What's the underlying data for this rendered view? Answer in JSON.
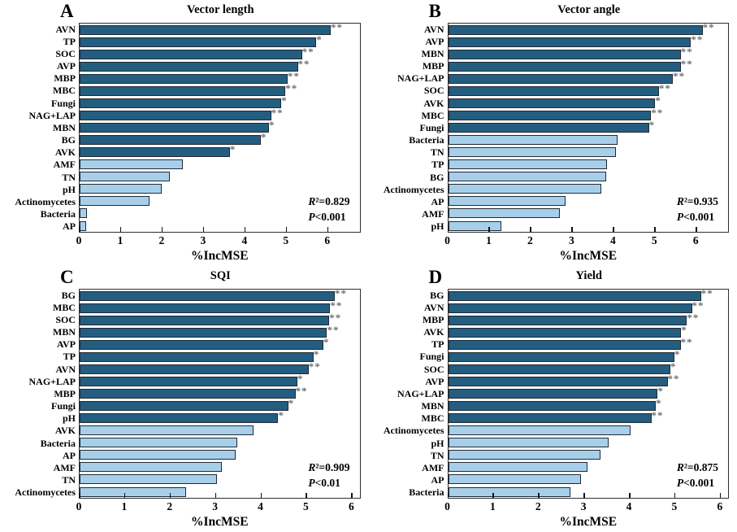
{
  "figure": {
    "xlabel": "%IncMSE",
    "panels_order": [
      "A",
      "B",
      "C",
      "D"
    ]
  },
  "colors": {
    "dark_bar": "#235E80",
    "light_bar": "#A7CFEA",
    "bar_border": "#202A35",
    "plot_border": "#2E2E2E",
    "star": "#6F6F6F",
    "text": "#000000",
    "background": "#FFFFFF"
  },
  "chart_data": [
    {
      "type": "bar",
      "panel": "A",
      "title": "Vector length",
      "orientation": "horizontal",
      "xlabel": "%IncMSE",
      "xlim": [
        0,
        6.8
      ],
      "xticks": [
        0,
        1,
        2,
        3,
        4,
        5,
        6
      ],
      "grid": false,
      "r2_display": "R²=0.829",
      "p_display": "P<0.001",
      "categories": [
        "AVN",
        "TP",
        "SOC",
        "AVP",
        "MBP",
        "MBC",
        "Fungi",
        "NAG+LAP",
        "MBN",
        "BG",
        "AVK",
        "AMF",
        "TN",
        "pH",
        "Actinomycetes",
        "Bacteria",
        "AP"
      ],
      "values": [
        6.1,
        5.75,
        5.4,
        5.3,
        5.05,
        5.0,
        4.9,
        4.65,
        4.6,
        4.4,
        3.65,
        2.5,
        2.2,
        2.0,
        1.7,
        0.18,
        0.16
      ],
      "significance": [
        "**",
        "*",
        "**",
        "**",
        "**",
        "**",
        "*",
        "**",
        "*",
        "*",
        "*",
        "",
        "",
        "",
        "",
        "",
        ""
      ],
      "bar_groups": [
        "dark",
        "dark",
        "dark",
        "dark",
        "dark",
        "dark",
        "dark",
        "dark",
        "dark",
        "dark",
        "dark",
        "light",
        "light",
        "light",
        "light",
        "light",
        "light"
      ]
    },
    {
      "type": "bar",
      "panel": "B",
      "title": "Vector angle",
      "orientation": "horizontal",
      "xlabel": "%IncMSE",
      "xlim": [
        0,
        6.8
      ],
      "xticks": [
        0,
        1,
        2,
        3,
        4,
        5,
        6
      ],
      "grid": false,
      "r2_display": "R²=0.935",
      "p_display": "P<0.001",
      "categories": [
        "AVN",
        "AVP",
        "MBN",
        "MBP",
        "NAG+LAP",
        "SOC",
        "AVK",
        "MBC",
        "Fungi",
        "Bacteria",
        "TN",
        "TP",
        "BG",
        "Actinomycetes",
        "AP",
        "AMF",
        "pH"
      ],
      "values": [
        6.18,
        5.9,
        5.65,
        5.65,
        5.46,
        5.12,
        5.03,
        4.93,
        4.88,
        4.12,
        4.07,
        3.85,
        3.84,
        3.72,
        2.85,
        2.71,
        1.3
      ],
      "significance": [
        "**",
        "**",
        "**",
        "**",
        "**",
        "**",
        "*",
        "**",
        "*",
        "",
        "",
        "",
        "",
        "",
        "",
        "",
        ""
      ],
      "bar_groups": [
        "dark",
        "dark",
        "dark",
        "dark",
        "dark",
        "dark",
        "dark",
        "dark",
        "dark",
        "light",
        "light",
        "light",
        "light",
        "light",
        "light",
        "light",
        "light"
      ]
    },
    {
      "type": "bar",
      "panel": "C",
      "title": "SQI",
      "orientation": "horizontal",
      "xlabel": "%IncMSE",
      "xlim": [
        0,
        6.2
      ],
      "xticks": [
        0,
        1,
        2,
        3,
        4,
        5,
        6
      ],
      "grid": false,
      "r2_display": "R²=0.909",
      "p_display": "P<0.01",
      "categories": [
        "BG",
        "MBC",
        "SOC",
        "MBN",
        "AVP",
        "TP",
        "AVN",
        "NAG+LAP",
        "MBP",
        "Fungi",
        "pH",
        "AVK",
        "Bacteria",
        "AP",
        "AMF",
        "TN",
        "Actinomycetes"
      ],
      "values": [
        5.65,
        5.55,
        5.53,
        5.48,
        5.4,
        5.18,
        5.07,
        4.82,
        4.78,
        4.62,
        4.4,
        3.85,
        3.5,
        3.46,
        3.15,
        3.04,
        2.35
      ],
      "significance": [
        "**",
        "**",
        "**",
        "**",
        "*",
        "*",
        "**",
        "*",
        "**",
        "*",
        "*",
        "",
        "",
        "",
        "",
        "",
        ""
      ],
      "bar_groups": [
        "dark",
        "dark",
        "dark",
        "dark",
        "dark",
        "dark",
        "dark",
        "dark",
        "dark",
        "dark",
        "dark",
        "light",
        "light",
        "light",
        "light",
        "light",
        "light"
      ]
    },
    {
      "type": "bar",
      "panel": "D",
      "title": "Yield",
      "orientation": "horizontal",
      "xlabel": "%IncMSE",
      "xlim": [
        0,
        6.2
      ],
      "xticks": [
        0,
        1,
        2,
        3,
        4,
        5,
        6
      ],
      "grid": false,
      "r2_display": "R²=0.875",
      "p_display": "P<0.001",
      "categories": [
        "BG",
        "AVN",
        "MBP",
        "AVK",
        "TP",
        "Fungi",
        "SOC",
        "AVP",
        "NAG+LAP",
        "MBN",
        "MBC",
        "Actinomycetes",
        "pH",
        "TN",
        "AMF",
        "AP",
        "Bacteria"
      ],
      "values": [
        5.6,
        5.4,
        5.29,
        5.16,
        5.15,
        5.01,
        4.92,
        4.86,
        4.64,
        4.6,
        4.5,
        4.04,
        3.55,
        3.37,
        3.08,
        2.95,
        2.7
      ],
      "significance": [
        "**",
        "**",
        "**",
        "*",
        "**",
        "*",
        "*",
        "**",
        "*",
        "*",
        "**",
        "",
        "",
        "",
        "",
        "",
        ""
      ],
      "bar_groups": [
        "dark",
        "dark",
        "dark",
        "dark",
        "dark",
        "dark",
        "dark",
        "dark",
        "dark",
        "dark",
        "dark",
        "light",
        "light",
        "light",
        "light",
        "light",
        "light"
      ]
    }
  ]
}
